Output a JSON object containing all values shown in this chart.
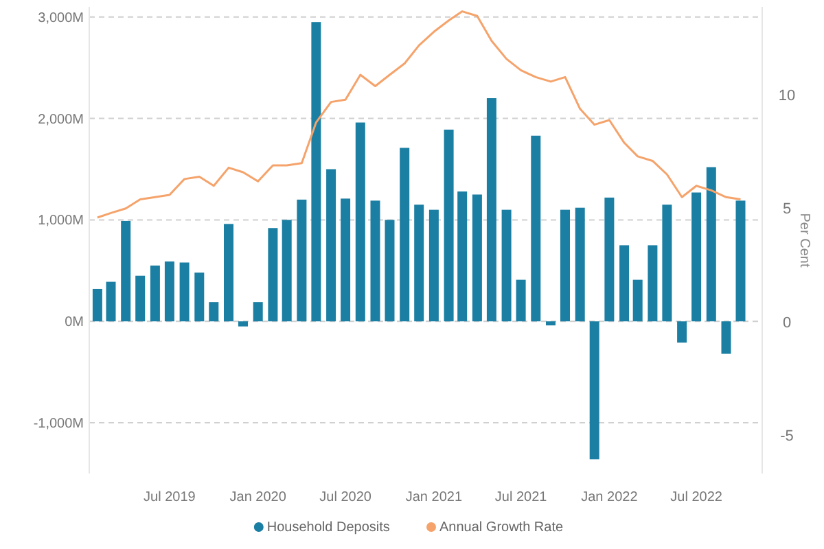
{
  "chart_data": {
    "type": "bar",
    "x": [
      "2019-02",
      "2019-03",
      "2019-04",
      "2019-05",
      "2019-06",
      "2019-07",
      "2019-08",
      "2019-09",
      "2019-10",
      "2019-11",
      "2019-12",
      "2020-01",
      "2020-02",
      "2020-03",
      "2020-04",
      "2020-05",
      "2020-06",
      "2020-07",
      "2020-08",
      "2020-09",
      "2020-10",
      "2020-11",
      "2020-12",
      "2021-01",
      "2021-02",
      "2021-03",
      "2021-04",
      "2021-05",
      "2021-06",
      "2021-07",
      "2021-08",
      "2021-09",
      "2021-10",
      "2021-11",
      "2021-12",
      "2022-01",
      "2022-02",
      "2022-03",
      "2022-04",
      "2022-05",
      "2022-06",
      "2022-07",
      "2022-08",
      "2022-09",
      "2022-10"
    ],
    "series": [
      {
        "name": "Household Deposits",
        "color": "#1b7fa3",
        "values": [
          320,
          390,
          990,
          450,
          550,
          590,
          580,
          480,
          190,
          960,
          -50,
          190,
          920,
          1000,
          1200,
          2950,
          1500,
          1210,
          1960,
          1190,
          1000,
          1710,
          1150,
          1100,
          1890,
          1280,
          1250,
          2200,
          1100,
          410,
          1830,
          -40,
          1100,
          1120,
          -1360,
          1220,
          750,
          410,
          750,
          1150,
          -210,
          1270,
          1520,
          -320,
          1190
        ]
      },
      {
        "name": "Annual Growth Rate",
        "type": "line",
        "axis": "y2",
        "color": "#f5a36b",
        "values": [
          4.6,
          4.8,
          5.0,
          5.4,
          5.5,
          5.6,
          6.3,
          6.4,
          6.0,
          6.8,
          6.6,
          6.2,
          6.9,
          6.9,
          7.0,
          8.8,
          9.7,
          9.8,
          10.9,
          10.4,
          10.9,
          11.4,
          12.2,
          12.8,
          13.3,
          13.7,
          13.5,
          12.4,
          11.6,
          11.1,
          10.8,
          10.6,
          10.8,
          9.4,
          8.7,
          8.9,
          7.9,
          7.3,
          7.1,
          6.5,
          5.5,
          6.0,
          5.8,
          5.5,
          5.4
        ]
      }
    ],
    "xlim": [
      "2019-01-15",
      "2022-11-15"
    ],
    "xticks": [
      {
        "value": "2019-07",
        "label": "Jul 2019"
      },
      {
        "value": "2020-01",
        "label": "Jan 2020"
      },
      {
        "value": "2020-07",
        "label": "Jul 2020"
      },
      {
        "value": "2021-01",
        "label": "Jan 2021"
      },
      {
        "value": "2021-07",
        "label": "Jul 2021"
      },
      {
        "value": "2022-01",
        "label": "Jan 2022"
      },
      {
        "value": "2022-07",
        "label": "Jul 2022"
      }
    ],
    "ylim": [
      -1500,
      3100
    ],
    "yticks": [
      {
        "value": -1000,
        "label": "-1,000M"
      },
      {
        "value": 0,
        "label": "0M"
      },
      {
        "value": 1000,
        "label": "1,000M"
      },
      {
        "value": 2000,
        "label": "2,000M"
      },
      {
        "value": 3000,
        "label": "3,000M"
      }
    ],
    "y2lim": [
      -6.7,
      13.9
    ],
    "y2ticks": [
      -5,
      0,
      5,
      10
    ],
    "y2label": "Per Cent",
    "grid": "y",
    "legend": "bottom",
    "line_style": "solid",
    "marker": "none"
  }
}
